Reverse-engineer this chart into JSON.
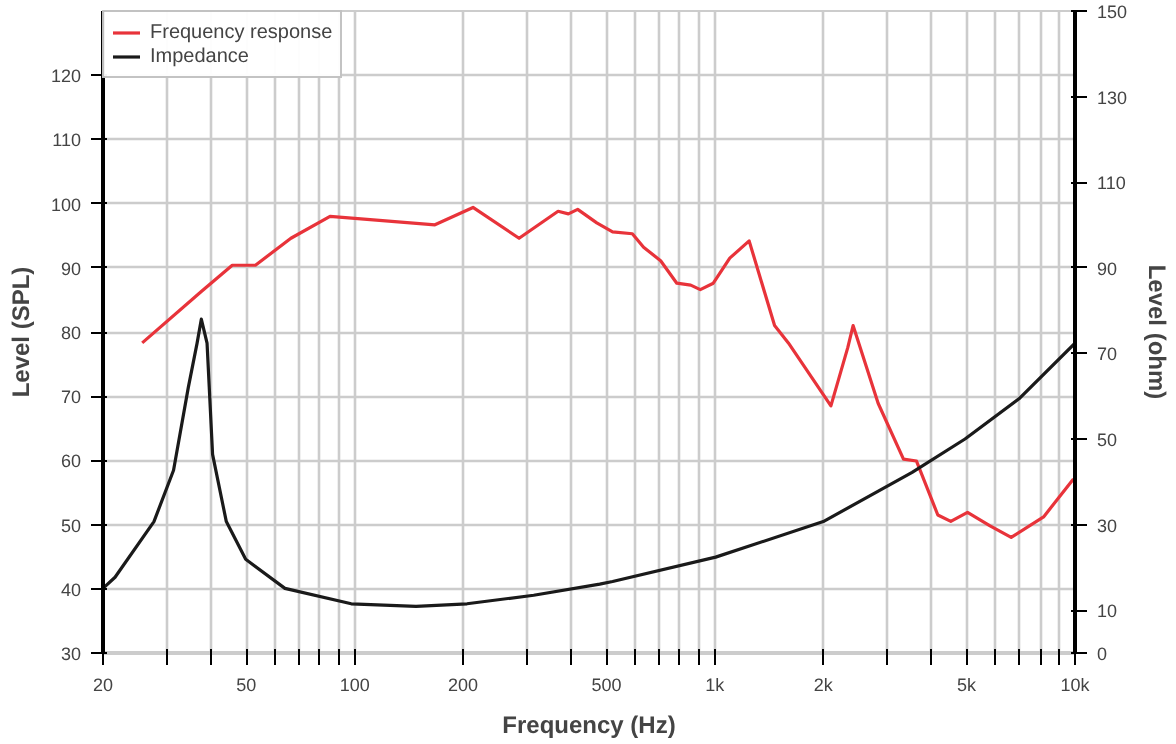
{
  "chart_data": {
    "type": "line",
    "xlabel": "Frequency (Hz)",
    "ylabel": "Level (SPL)",
    "y2label": "Level (ohm)",
    "log": "x",
    "grid": true,
    "legend": "top left",
    "line_style": "solid",
    "marker": "none",
    "xlim": [
      20,
      10000
    ],
    "xticks": [
      20,
      {
        "value": 30,
        "label": null
      },
      {
        "value": 40,
        "label": null
      },
      50,
      {
        "value": 60,
        "label": null
      },
      {
        "value": 70,
        "label": null
      },
      {
        "value": 80,
        "label": null
      },
      {
        "value": 90,
        "label": null
      },
      100,
      200,
      {
        "value": 300,
        "label": null
      },
      {
        "value": 400,
        "label": null
      },
      500,
      {
        "value": 600,
        "label": null
      },
      {
        "value": 700,
        "label": null
      },
      {
        "value": 800,
        "label": null
      },
      {
        "value": 900,
        "label": null
      },
      {
        "value": 1000,
        "label": "1k"
      },
      {
        "value": 2000,
        "label": "2k"
      },
      {
        "value": 3000,
        "label": null
      },
      {
        "value": 4000,
        "label": null
      },
      {
        "value": 5000,
        "label": "5k"
      },
      {
        "value": 6000,
        "label": null
      },
      {
        "value": 7000,
        "label": null
      },
      {
        "value": 8000,
        "label": null
      },
      {
        "value": 9000,
        "label": null
      },
      {
        "value": 10000,
        "label": "10k"
      }
    ],
    "ylim": [
      30,
      130
    ],
    "yticks": [
      30,
      40,
      50,
      60,
      70,
      80,
      90,
      100,
      110,
      120
    ],
    "y2lim": [
      0,
      150
    ],
    "y2ticks": [
      0,
      10,
      30,
      50,
      70,
      90,
      110,
      130,
      150
    ],
    "series": [
      {
        "name": "Frequency response",
        "color": "#e8333a",
        "x": [
          25.7,
          37.5,
          45.7,
          53,
          66.5,
          85.4,
          167,
          213,
          286,
          367,
          392,
          416,
          470,
          520,
          590,
          634,
          707,
          784,
          857,
          911,
          990,
          1100,
          1245,
          1465,
          1600,
          2100,
          2340,
          2420,
          2840,
          3340,
          3630,
          4160,
          4520,
          5030,
          5810,
          6650,
          8180,
          9900
        ],
        "values": [
          78.3,
          86.3,
          90.4,
          90.4,
          94.6,
          98,
          96.7,
          99.4,
          94.6,
          98.8,
          98.4,
          99.1,
          97,
          95.6,
          95.3,
          93.2,
          91.1,
          87.6,
          87.3,
          86.6,
          87.6,
          91.5,
          94.2,
          81,
          78.3,
          68.5,
          77.6,
          81,
          68.9,
          60.2,
          59.9,
          51.5,
          50.5,
          51.9,
          49.8,
          48,
          51.2,
          57.1
        ]
      },
      {
        "name": "Impedance",
        "color": "#1a1a1a",
        "axis": "y2",
        "x": [
          20,
          21.6,
          27.7,
          31.4,
          34.5,
          36.5,
          37.5,
          38.9,
          40.3,
          44,
          49.8,
          64,
          97.8,
          148,
          205,
          314,
          479,
          520,
          1005,
          2000,
          3530,
          4950,
          6990,
          10000
        ],
        "values": [
          15.1,
          17.7,
          30.7,
          42.7,
          62,
          72.4,
          78,
          72.4,
          46.4,
          30.7,
          21.9,
          15.1,
          11.5,
          10.9,
          11.5,
          13.5,
          16.1,
          16.7,
          22.4,
          30.7,
          42.2,
          50,
          59.4,
          72.4
        ]
      }
    ]
  }
}
